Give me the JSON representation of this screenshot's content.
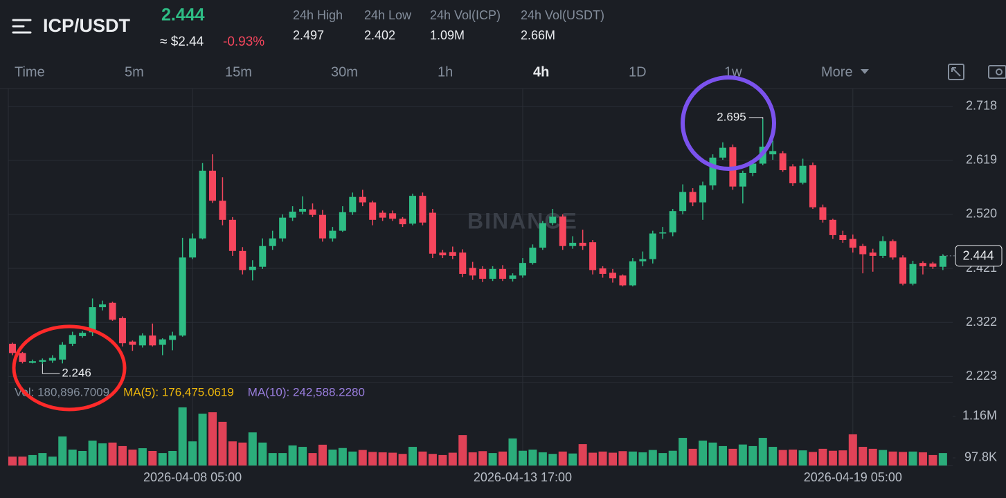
{
  "header": {
    "pair": "ICP/USDT",
    "price": "2.444",
    "usd_price": "≈ $2.44",
    "change": "-0.93%",
    "stats": [
      {
        "label": "24h High",
        "value": "2.497"
      },
      {
        "label": "24h Low",
        "value": "2.402"
      },
      {
        "label": "24h Vol(ICP)",
        "value": "1.09M"
      },
      {
        "label": "24h Vol(USDT)",
        "value": "2.66M"
      }
    ]
  },
  "tabs": [
    "Time",
    "5m",
    "15m",
    "30m",
    "1h",
    "4h",
    "1D",
    "1w",
    "More"
  ],
  "active_tab": "4h",
  "chart_data": {
    "type": "candlestick",
    "watermark": "BINANCE",
    "up_color": "#2ebd85",
    "down_color": "#f6465d",
    "categories": [
      null,
      null,
      null,
      null,
      null,
      null,
      null,
      null,
      null,
      null,
      null,
      null,
      null,
      null,
      null,
      null,
      null,
      null,
      "2026-04-08 05:00",
      null,
      null,
      null,
      null,
      null,
      null,
      null,
      null,
      null,
      null,
      null,
      null,
      null,
      null,
      null,
      null,
      null,
      null,
      null,
      null,
      null,
      null,
      null,
      null,
      null,
      null,
      null,
      null,
      null,
      null,
      null,
      null,
      "2026-04-13 17:00",
      null,
      null,
      null,
      null,
      null,
      null,
      null,
      null,
      null,
      null,
      null,
      null,
      null,
      null,
      null,
      null,
      null,
      null,
      null,
      null,
      null,
      null,
      null,
      null,
      null,
      null,
      null,
      null,
      null,
      null,
      null,
      null,
      "2026-04-19 05:00",
      null,
      null,
      null,
      null,
      null,
      null,
      null,
      null,
      null
    ],
    "open": [
      2.283,
      2.266,
      2.248,
      2.25,
      2.252,
      2.254,
      2.283,
      2.297,
      2.304,
      2.35,
      2.358,
      2.33,
      2.287,
      2.28,
      2.298,
      2.281,
      2.29,
      2.298,
      2.441,
      2.476,
      2.6,
      2.545,
      2.51,
      2.453,
      2.418,
      2.424,
      2.462,
      2.476,
      2.514,
      2.525,
      2.529,
      2.519,
      2.476,
      2.49,
      2.524,
      2.552,
      2.542,
      2.523,
      2.522,
      2.512,
      2.503,
      2.554,
      2.523,
      2.45,
      2.451,
      2.45,
      2.422,
      2.42,
      2.402,
      2.42,
      2.402,
      2.408,
      2.431,
      2.459,
      2.504,
      2.516,
      2.462,
      2.468,
      2.469,
      2.421,
      2.413,
      2.408,
      2.39,
      2.434,
      2.438,
      2.485,
      2.487,
      2.526,
      2.561,
      2.542,
      2.573,
      2.624,
      2.643,
      2.571,
      2.596,
      2.613,
      2.63,
      2.632,
      2.608,
      2.578,
      2.61,
      2.533,
      2.51,
      2.482,
      2.475,
      2.462,
      2.45,
      2.444,
      2.471,
      2.441,
      2.393,
      2.431,
      2.43,
      2.424
    ],
    "high": [
      2.285,
      2.268,
      2.254,
      2.256,
      2.262,
      2.286,
      2.305,
      2.306,
      2.366,
      2.362,
      2.36,
      2.333,
      2.289,
      2.302,
      2.32,
      2.293,
      2.305,
      2.477,
      2.485,
      2.614,
      2.63,
      2.588,
      2.515,
      2.46,
      2.436,
      2.476,
      2.49,
      2.52,
      2.535,
      2.553,
      2.54,
      2.528,
      2.497,
      2.535,
      2.56,
      2.565,
      2.545,
      2.527,
      2.527,
      2.515,
      2.558,
      2.56,
      2.53,
      2.455,
      2.461,
      2.456,
      2.433,
      2.425,
      2.425,
      2.427,
      2.412,
      2.44,
      2.465,
      2.508,
      2.53,
      2.52,
      2.48,
      2.492,
      2.473,
      2.425,
      2.42,
      2.41,
      2.44,
      2.452,
      2.49,
      2.497,
      2.53,
      2.575,
      2.568,
      2.58,
      2.63,
      2.652,
      2.648,
      2.6,
      2.62,
      2.695,
      2.655,
      2.636,
      2.612,
      2.622,
      2.615,
      2.538,
      2.512,
      2.49,
      2.483,
      2.466,
      2.457,
      2.48,
      2.474,
      2.445,
      2.435,
      2.434,
      2.433,
      2.447
    ],
    "low": [
      2.262,
      2.247,
      2.247,
      2.246,
      2.248,
      2.247,
      2.279,
      2.294,
      2.297,
      2.344,
      2.325,
      2.278,
      2.27,
      2.276,
      2.278,
      2.262,
      2.271,
      2.296,
      2.438,
      2.474,
      2.541,
      2.5,
      2.444,
      2.41,
      2.399,
      2.42,
      2.455,
      2.47,
      2.508,
      2.52,
      2.515,
      2.47,
      2.47,
      2.488,
      2.519,
      2.535,
      2.5,
      2.508,
      2.508,
      2.497,
      2.5,
      2.5,
      2.44,
      2.44,
      2.438,
      2.405,
      2.4,
      2.396,
      2.398,
      2.398,
      2.397,
      2.404,
      2.428,
      2.455,
      2.5,
      2.455,
      2.457,
      2.455,
      2.41,
      2.404,
      2.395,
      2.388,
      2.388,
      2.425,
      2.43,
      2.475,
      2.48,
      2.52,
      2.535,
      2.51,
      2.565,
      2.62,
      2.565,
      2.54,
      2.59,
      2.61,
      2.62,
      2.598,
      2.572,
      2.575,
      2.53,
      2.505,
      2.475,
      2.468,
      2.45,
      2.412,
      2.415,
      2.44,
      2.437,
      2.39,
      2.39,
      2.41,
      2.42,
      2.418
    ],
    "close": [
      2.266,
      2.25,
      2.251,
      2.253,
      2.257,
      2.281,
      2.299,
      2.303,
      2.35,
      2.355,
      2.327,
      2.284,
      2.281,
      2.298,
      2.28,
      2.291,
      2.298,
      2.441,
      2.476,
      2.6,
      2.545,
      2.51,
      2.453,
      2.418,
      2.424,
      2.462,
      2.476,
      2.514,
      2.525,
      2.53,
      2.519,
      2.476,
      2.49,
      2.524,
      2.552,
      2.542,
      2.51,
      2.514,
      2.512,
      2.502,
      2.554,
      2.505,
      2.448,
      2.445,
      2.444,
      2.411,
      2.408,
      2.402,
      2.42,
      2.402,
      2.408,
      2.431,
      2.459,
      2.504,
      2.516,
      2.462,
      2.468,
      2.462,
      2.418,
      2.411,
      2.403,
      2.39,
      2.434,
      2.438,
      2.485,
      2.487,
      2.526,
      2.561,
      2.542,
      2.573,
      2.624,
      2.642,
      2.571,
      2.596,
      2.613,
      2.644,
      2.636,
      2.601,
      2.577,
      2.609,
      2.533,
      2.51,
      2.482,
      2.473,
      2.459,
      2.447,
      2.444,
      2.471,
      2.441,
      2.393,
      2.429,
      2.425,
      2.424,
      2.444
    ],
    "volume": [
      130000,
      130000,
      170000,
      220000,
      130000,
      645000,
      310000,
      275000,
      540000,
      470000,
      490000,
      400000,
      310000,
      345000,
      275000,
      220000,
      275000,
      1390000,
      520000,
      1230000,
      1265000,
      1020000,
      520000,
      490000,
      750000,
      490000,
      220000,
      220000,
      415000,
      380000,
      220000,
      435000,
      310000,
      350000,
      260000,
      300000,
      250000,
      240000,
      230000,
      200000,
      380000,
      260000,
      200000,
      170000,
      230000,
      680000,
      240000,
      270000,
      220000,
      260000,
      595000,
      280000,
      310000,
      240000,
      200000,
      260000,
      210000,
      450000,
      230000,
      260000,
      230000,
      270000,
      260000,
      240000,
      300000,
      220000,
      280000,
      610000,
      330000,
      540000,
      490000,
      400000,
      330000,
      440000,
      400000,
      610000,
      380000,
      300000,
      310000,
      290000,
      250000,
      330000,
      280000,
      290000,
      700000,
      380000,
      330000,
      300000,
      260000,
      250000,
      260000,
      240000,
      170000,
      220000
    ],
    "ylim": [
      2.212,
      2.748
    ],
    "yticks": [
      2.718,
      2.619,
      {
        "value": 2.52,
        "label": "2.520"
      },
      2.421,
      2.322,
      2.223
    ],
    "vylim": [
      -97000,
      1372000
    ],
    "vyticks": [
      {
        "value": 1160000,
        "label": "1.16M"
      },
      {
        "value": 97800,
        "label": "97.8K"
      }
    ],
    "last_price": 2.444,
    "annotations": {
      "high": 2.695,
      "low": 2.246
    },
    "volume_legend": [
      {
        "text": "Vol: 180,896.7009",
        "color": "#848e9c"
      },
      {
        "text": "MA(5): 176,475.0619",
        "color": "#f0b90b"
      },
      {
        "text": "MA(10): 242,588.2280",
        "color": "#9b7fe0"
      }
    ],
    "grid": true
  }
}
